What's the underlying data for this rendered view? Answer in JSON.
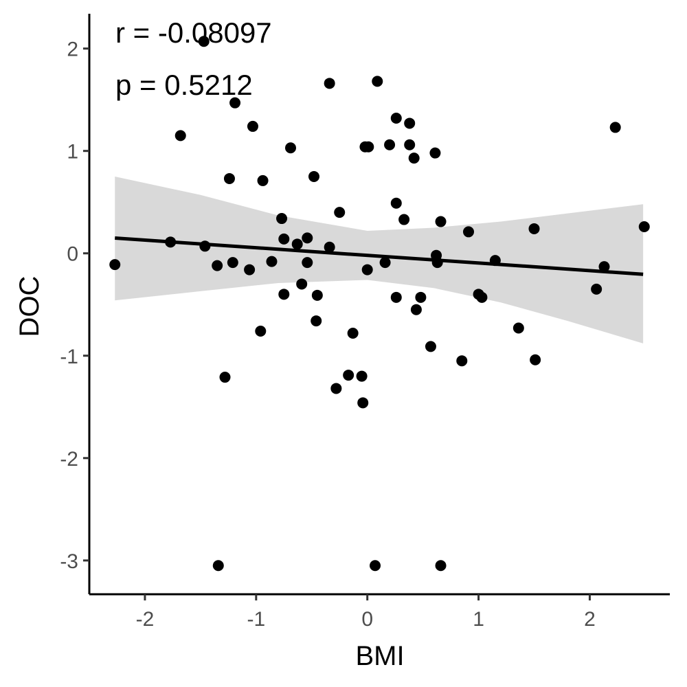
{
  "chart_data": {
    "type": "scatter",
    "title": "",
    "xlabel": "BMI",
    "ylabel": "DOC",
    "xlim": [
      -2.5,
      2.72
    ],
    "ylim": [
      -3.33,
      2.34
    ],
    "x_ticks": [
      -2,
      -1,
      0,
      1,
      2
    ],
    "y_ticks": [
      -3,
      -2,
      -1,
      0,
      1,
      2
    ],
    "x_tick_labels": [
      "-2",
      "-1",
      "0",
      "1",
      "2"
    ],
    "y_tick_labels": [
      "-3",
      "-2",
      "-1",
      "0",
      "1",
      "2"
    ],
    "grid": false,
    "annotations": {
      "r": "r = -0.08097",
      "p": "p = 0.5212"
    },
    "regression": {
      "x_range": [
        -2.27,
        2.48
      ],
      "intercept": -0.02,
      "slope": -0.0745,
      "ci_lower": [
        [
          -2.27,
          -0.46
        ],
        [
          -1.5,
          -0.37
        ],
        [
          -0.8,
          -0.29
        ],
        [
          0.0,
          -0.26
        ],
        [
          0.6,
          -0.34
        ],
        [
          1.2,
          -0.48
        ],
        [
          1.8,
          -0.66
        ],
        [
          2.48,
          -0.88
        ]
      ],
      "ci_upper": [
        [
          -2.27,
          0.75
        ],
        [
          -1.5,
          0.57
        ],
        [
          -0.8,
          0.37
        ],
        [
          0.0,
          0.22
        ],
        [
          0.6,
          0.25
        ],
        [
          1.2,
          0.31
        ],
        [
          1.8,
          0.39
        ],
        [
          2.48,
          0.48
        ]
      ],
      "band_color": "#d9d9d9",
      "line_color": "#000000"
    },
    "point_color": "#000000",
    "points": [
      [
        -2.27,
        -0.11
      ],
      [
        -1.77,
        0.11
      ],
      [
        -1.68,
        1.15
      ],
      [
        -1.47,
        2.07
      ],
      [
        -1.46,
        0.07
      ],
      [
        -1.35,
        -0.12
      ],
      [
        -1.34,
        -3.05
      ],
      [
        -1.28,
        -1.21
      ],
      [
        -1.24,
        0.73
      ],
      [
        -1.21,
        -0.09
      ],
      [
        -1.19,
        1.47
      ],
      [
        -1.06,
        -0.16
      ],
      [
        -1.03,
        1.24
      ],
      [
        -0.96,
        -0.76
      ],
      [
        -0.94,
        0.71
      ],
      [
        -0.86,
        -0.08
      ],
      [
        -0.77,
        0.34
      ],
      [
        -0.75,
        0.14
      ],
      [
        -0.75,
        -0.4
      ],
      [
        -0.69,
        1.03
      ],
      [
        -0.63,
        0.09
      ],
      [
        -0.59,
        -0.3
      ],
      [
        -0.54,
        0.15
      ],
      [
        -0.54,
        -0.09
      ],
      [
        -0.48,
        0.75
      ],
      [
        -0.46,
        -0.66
      ],
      [
        -0.45,
        -0.41
      ],
      [
        -0.34,
        0.06
      ],
      [
        -0.34,
        1.66
      ],
      [
        -0.28,
        -1.32
      ],
      [
        -0.25,
        0.4
      ],
      [
        -0.17,
        -1.19
      ],
      [
        -0.13,
        -0.78
      ],
      [
        -0.05,
        -1.2
      ],
      [
        -0.04,
        -1.46
      ],
      [
        -0.02,
        1.04
      ],
      [
        0.0,
        -0.16
      ],
      [
        0.01,
        1.04
      ],
      [
        0.07,
        -3.05
      ],
      [
        0.09,
        1.68
      ],
      [
        0.16,
        -0.09
      ],
      [
        0.2,
        1.06
      ],
      [
        0.26,
        1.32
      ],
      [
        0.26,
        0.49
      ],
      [
        0.26,
        -0.43
      ],
      [
        0.33,
        0.33
      ],
      [
        0.38,
        1.06
      ],
      [
        0.38,
        1.27
      ],
      [
        0.42,
        0.93
      ],
      [
        0.44,
        -0.55
      ],
      [
        0.48,
        -0.43
      ],
      [
        0.57,
        -0.91
      ],
      [
        0.61,
        0.98
      ],
      [
        0.62,
        -0.02
      ],
      [
        0.63,
        -0.09
      ],
      [
        0.66,
        0.31
      ],
      [
        0.66,
        -3.05
      ],
      [
        0.85,
        -1.05
      ],
      [
        0.91,
        0.21
      ],
      [
        1.0,
        -0.4
      ],
      [
        1.03,
        -0.43
      ],
      [
        1.15,
        -0.07
      ],
      [
        1.36,
        -0.73
      ],
      [
        1.5,
        0.24
      ],
      [
        1.51,
        -1.04
      ],
      [
        2.06,
        -0.35
      ],
      [
        2.13,
        -0.13
      ],
      [
        2.23,
        1.23
      ],
      [
        2.49,
        0.26
      ]
    ]
  }
}
